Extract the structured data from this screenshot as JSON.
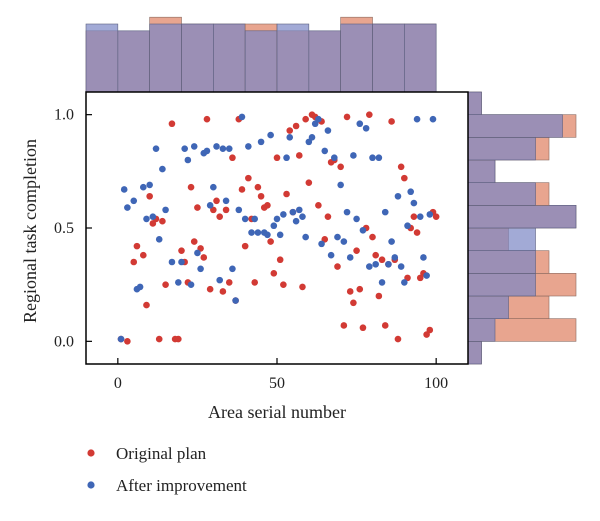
{
  "chart_data": {
    "type": "scatter",
    "xlabel": "Area serial number",
    "ylabel": "Regional task completion",
    "xlim": [
      -10,
      110
    ],
    "ylim": [
      -0.1,
      1.1
    ],
    "x_ticks": [
      0,
      50,
      100
    ],
    "y_ticks": [
      0.0,
      0.5,
      1.0
    ],
    "x_tick_labels": [
      "0",
      "50",
      "100"
    ],
    "y_tick_labels": [
      "0.0",
      "0.5",
      "1.0"
    ],
    "grid": false,
    "legend": {
      "placement": "bottom-left",
      "entries": [
        "Original plan",
        "After improvement"
      ]
    },
    "series": [
      {
        "name": "Original plan",
        "color": "#d23a34",
        "x": [
          1,
          3,
          5,
          6,
          8,
          9,
          10,
          11,
          12,
          13,
          14,
          15,
          17,
          18,
          19,
          20,
          21,
          22,
          23,
          24,
          25,
          26,
          27,
          28,
          29,
          30,
          31,
          32,
          33,
          34,
          35,
          36,
          37,
          38,
          39,
          40,
          41,
          42,
          43,
          44,
          45,
          46,
          47,
          48,
          49,
          50,
          51,
          52,
          53,
          54,
          55,
          56,
          57,
          58,
          59,
          60,
          61,
          62,
          63,
          64,
          65,
          66,
          67,
          68,
          69,
          70,
          71,
          72,
          73,
          74,
          75,
          76,
          77,
          78,
          79,
          80,
          81,
          82,
          83,
          84,
          85,
          86,
          87,
          88,
          89,
          90,
          91,
          92,
          93,
          94,
          95,
          96,
          97,
          98,
          99,
          100
        ],
        "y": [
          0.01,
          0.0,
          0.35,
          0.42,
          0.38,
          0.16,
          0.64,
          0.52,
          0.54,
          0.01,
          0.53,
          0.25,
          0.96,
          0.01,
          0.01,
          0.4,
          0.35,
          0.26,
          0.68,
          0.44,
          0.59,
          0.41,
          0.37,
          0.98,
          0.23,
          0.58,
          0.62,
          0.55,
          0.22,
          0.58,
          0.26,
          0.81,
          0.18,
          0.98,
          0.67,
          0.42,
          0.72,
          0.54,
          0.26,
          0.68,
          0.64,
          0.59,
          0.6,
          0.44,
          0.3,
          0.81,
          0.36,
          0.25,
          0.65,
          0.93,
          0.57,
          0.95,
          0.82,
          0.24,
          0.98,
          0.7,
          1.0,
          0.99,
          0.6,
          0.97,
          0.45,
          0.55,
          0.79,
          0.8,
          0.33,
          0.77,
          0.07,
          0.99,
          0.22,
          0.17,
          0.4,
          0.23,
          0.06,
          0.5,
          1.0,
          0.46,
          0.38,
          0.2,
          0.36,
          0.07,
          0.34,
          0.97,
          0.36,
          0.01,
          0.77,
          0.72,
          0.28,
          0.5,
          0.55,
          0.48,
          0.28,
          0.3,
          0.03,
          0.05,
          0.57,
          0.55
        ],
        "x_note": "",
        "y_note": ""
      },
      {
        "name": "After improvement",
        "color": "#3f66b6",
        "x": [
          1,
          2,
          3,
          5,
          6,
          7,
          8,
          9,
          10,
          11,
          12,
          13,
          14,
          15,
          17,
          19,
          20,
          21,
          22,
          23,
          24,
          25,
          26,
          27,
          28,
          29,
          30,
          31,
          32,
          33,
          34,
          35,
          36,
          37,
          38,
          39,
          40,
          41,
          42,
          43,
          44,
          45,
          46,
          47,
          48,
          49,
          50,
          51,
          52,
          53,
          54,
          55,
          56,
          57,
          58,
          59,
          60,
          61,
          62,
          63,
          64,
          65,
          66,
          67,
          68,
          69,
          70,
          71,
          72,
          73,
          74,
          75,
          76,
          77,
          78,
          79,
          80,
          81,
          82,
          83,
          84,
          85,
          86,
          87,
          88,
          89,
          90,
          91,
          92,
          93,
          94,
          95,
          96,
          97,
          98,
          99
        ],
        "y": [
          0.01,
          0.67,
          0.59,
          0.62,
          0.23,
          0.24,
          0.68,
          0.54,
          0.69,
          0.55,
          0.85,
          0.45,
          0.76,
          0.58,
          0.35,
          0.26,
          0.35,
          0.85,
          0.8,
          0.25,
          0.86,
          0.39,
          0.32,
          0.83,
          0.84,
          0.6,
          0.68,
          0.86,
          0.27,
          0.85,
          0.62,
          0.85,
          0.32,
          0.18,
          0.58,
          0.99,
          0.54,
          0.86,
          0.48,
          0.54,
          0.48,
          0.88,
          0.48,
          0.47,
          0.91,
          0.51,
          0.54,
          0.47,
          0.56,
          0.81,
          0.9,
          0.57,
          0.53,
          0.58,
          0.55,
          0.46,
          0.88,
          0.9,
          0.96,
          0.98,
          0.43,
          0.84,
          0.93,
          0.38,
          0.81,
          0.46,
          0.69,
          0.44,
          0.57,
          0.37,
          0.82,
          0.54,
          0.96,
          0.49,
          0.94,
          0.33,
          0.81,
          0.34,
          0.81,
          0.26,
          0.57,
          0.34,
          0.44,
          0.37,
          0.64,
          0.33,
          0.26,
          0.51,
          0.66,
          0.61,
          0.98,
          0.55,
          0.37,
          0.29,
          0.56,
          0.98
        ],
        "x_note": "",
        "y_note": ""
      }
    ],
    "top_histogram": {
      "bin_edges": [
        -10,
        0,
        10,
        20,
        30,
        40,
        50,
        60,
        70,
        80,
        90,
        100
      ],
      "original_counts": [
        9,
        9,
        11,
        10,
        10,
        10,
        9,
        9,
        11,
        10,
        10
      ],
      "improved_counts": [
        10,
        9,
        10,
        10,
        10,
        9,
        10,
        9,
        10,
        10,
        10
      ]
    },
    "right_histogram": {
      "bin_edges": [
        -0.1,
        0.0,
        0.1,
        0.2,
        0.3,
        0.4,
        0.5,
        0.6,
        0.7,
        0.8,
        0.9,
        1.0,
        1.1
      ],
      "original_counts": [
        1,
        8,
        6,
        8,
        6,
        3,
        8,
        6,
        2,
        6,
        8,
        1
      ],
      "improved_counts": [
        1,
        2,
        3,
        5,
        5,
        5,
        8,
        5,
        2,
        5,
        7,
        1
      ]
    }
  }
}
